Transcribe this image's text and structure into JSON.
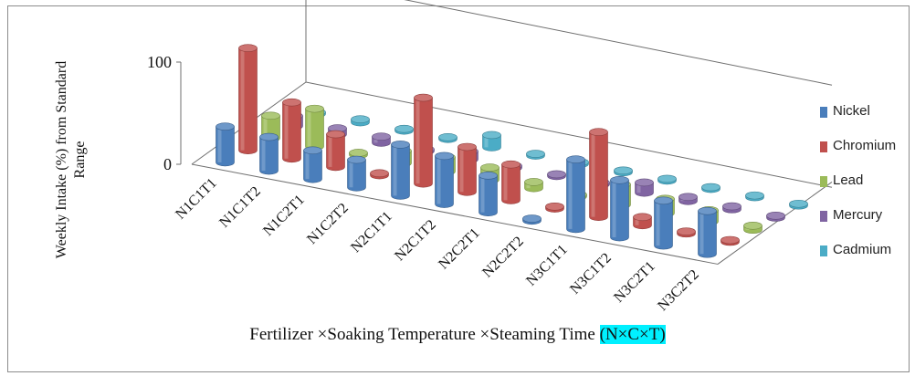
{
  "chart_data": {
    "type": "bar",
    "subtype": "3d-column",
    "categories": [
      "N1C1T1",
      "N1C1T2",
      "N1C2T1",
      "N1C2T2",
      "N2C1T1",
      "N2C1T2",
      "N2C2T1",
      "N2C2T2",
      "N3C1T1",
      "N3C1T2",
      "N3C2T1",
      "N3C2T2"
    ],
    "series": [
      {
        "name": "Nickel",
        "color": "#4a7ebb",
        "values": [
          35,
          33,
          28,
          27,
          50,
          47,
          36,
          2,
          68,
          56,
          44,
          42
        ]
      },
      {
        "name": "Chromium",
        "color": "#c0504d",
        "values": [
          100,
          55,
          32,
          2,
          84,
          44,
          35,
          2,
          83,
          8,
          2,
          1
        ]
      },
      {
        "name": "Lead",
        "color": "#9bbb59",
        "values": [
          22,
          37,
          2,
          12,
          14,
          12,
          6,
          1,
          20,
          14,
          11,
          4
        ]
      },
      {
        "name": "Mercury",
        "color": "#8064a2",
        "values": [
          10,
          6,
          6,
          1,
          8,
          2,
          1,
          1,
          10,
          4,
          3,
          2
        ]
      },
      {
        "name": "Cadmium",
        "color": "#4bacc6",
        "values": [
          1,
          3,
          1,
          1,
          12,
          1,
          1,
          1,
          1,
          1,
          1,
          1
        ]
      }
    ],
    "yticks": [
      0,
      100
    ],
    "ylim": [
      0,
      100
    ],
    "ylabel": "Weekly Intake (%) from Standard Range",
    "xlabel": "Fertilizer ×Soaking Temperature ×Steaming Time",
    "xlabel_highlight": "(N×C×T)",
    "legend_position": "right",
    "grid": false
  }
}
